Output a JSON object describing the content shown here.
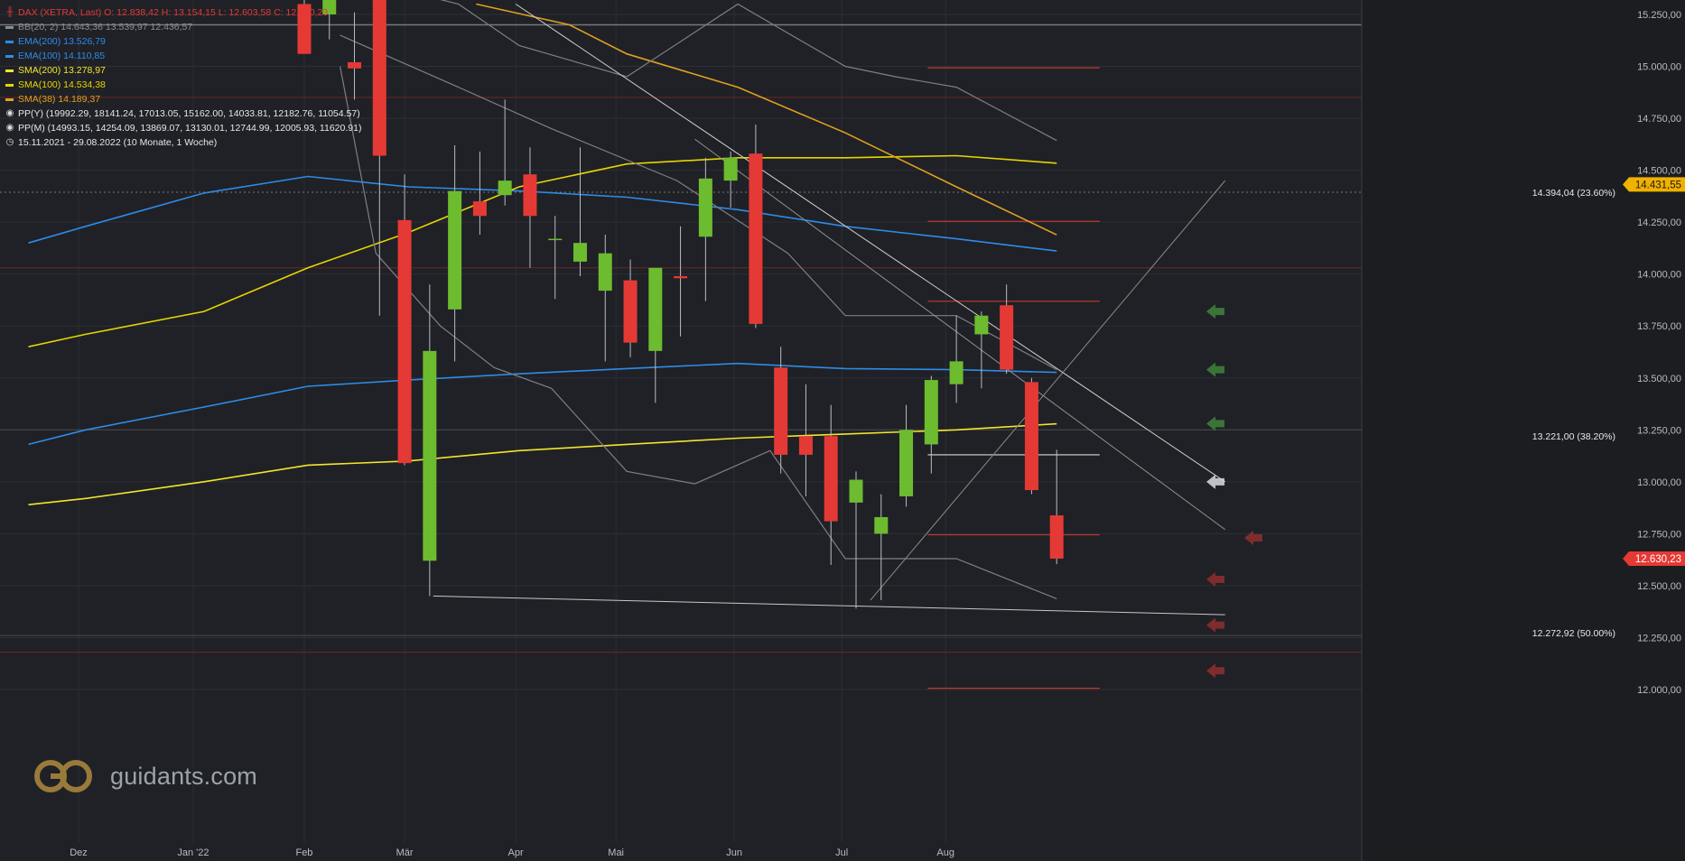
{
  "header": {
    "title_line": "DAX (XETRA, Last)  O: 12.838,42  H: 13.154,15  L: 12.603,58  C: 12.630,23",
    "title_icon": "candlestick-icon",
    "indicators": [
      {
        "label": "BB(20, 2)  14.643,36  13.539,97  12.436,57",
        "color": "#8a8d93"
      },
      {
        "label": "EMA(200)  13.526,79",
        "color": "#2f8be8"
      },
      {
        "label": "EMA(100)  14.110,85",
        "color": "#2f8be8"
      },
      {
        "label": "SMA(200)  13.278,97",
        "color": "#f2e62a"
      },
      {
        "label": "SMA(100)  14.534,38",
        "color": "#e8d400"
      },
      {
        "label": "SMA(38)  14.189,37",
        "color": "#e0a020"
      }
    ],
    "pivots": [
      {
        "label": "PP(Y)  (19992.29, 18141.24, 17013.05, 15162.00, 14033.81, 12182.76, 11054.57)",
        "icon": "target-icon"
      },
      {
        "label": "PP(M)  (14993.15, 14254.09, 13869.07, 13130.01, 12744.99, 12005.93, 11620.91)",
        "icon": "target-icon"
      }
    ],
    "period": {
      "label": "15.11.2021 - 29.08.2022   (10 Monate, 1 Woche)",
      "icon": "clock-icon"
    }
  },
  "brand": {
    "text": "guidants.com",
    "icon": "guidants-logo-icon"
  },
  "colors": {
    "background": "#1f2126",
    "up": "#6dbb2f",
    "down": "#e53935",
    "ema": "#2f8be8",
    "sma200": "#f2e62a",
    "sma100": "#e8d400",
    "sma38": "#e0a020",
    "bb": "#7c7f85",
    "last_badge": "#e53935",
    "fib_badge": "#f0b100"
  },
  "chart_data": {
    "type": "candlestick",
    "interval": "weekly",
    "yaxis_ticks": [
      "15.250,00",
      "15.000,00",
      "14.750,00",
      "14.500,00",
      "14.250,00",
      "14.000,00",
      "13.750,00",
      "13.500,00",
      "13.250,00",
      "13.000,00",
      "12.750,00",
      "12.500,00",
      "12.250,00",
      "12.000,00"
    ],
    "xaxis_ticks": [
      "Dez",
      "Jan '22",
      "Feb",
      "Mär",
      "Apr",
      "Mai",
      "Jun",
      "Jul",
      "Aug"
    ],
    "last_price": {
      "label": "12.630,23",
      "value": 12630.23
    },
    "fib_badge": {
      "label": "14.431,55",
      "value": 14431.55
    },
    "fib_labels": [
      {
        "label": "14.394,04 (23.60%)",
        "value": 14394.04
      },
      {
        "label": "13.221,00 (38.20%)",
        "value": 13221.0
      },
      {
        "label": "12.272,92 (50.00%)",
        "value": 12272.92
      }
    ],
    "candles": [
      {
        "d": "2022-01-31",
        "o": 15300,
        "h": 15400,
        "l": 15060,
        "c": 15060
      },
      {
        "d": "2022-02-07",
        "o": 15250,
        "h": 15400,
        "l": 15130,
        "c": 15320
      },
      {
        "d": "2022-02-14",
        "o": 15020,
        "h": 15260,
        "l": 14840,
        "c": 14990
      },
      {
        "d": "2022-02-21",
        "o": 15590,
        "h": 15750,
        "l": 13800,
        "c": 14570
      },
      {
        "d": "2022-02-28",
        "o": 14260,
        "h": 14480,
        "l": 13080,
        "c": 13090
      },
      {
        "d": "2022-03-07",
        "o": 12620,
        "h": 13950,
        "l": 12450,
        "c": 13630
      },
      {
        "d": "2022-03-14",
        "o": 13830,
        "h": 14620,
        "l": 13580,
        "c": 14400
      },
      {
        "d": "2022-03-21",
        "o": 14350,
        "h": 14590,
        "l": 14190,
        "c": 14280
      },
      {
        "d": "2022-03-28",
        "o": 14380,
        "h": 14840,
        "l": 14330,
        "c": 14450
      },
      {
        "d": "2022-04-04",
        "o": 14480,
        "h": 14610,
        "l": 14030,
        "c": 14280
      },
      {
        "d": "2022-04-11",
        "o": 14170,
        "h": 14280,
        "l": 13880,
        "c": 14170
      },
      {
        "d": "2022-04-18",
        "o": 14060,
        "h": 14610,
        "l": 13990,
        "c": 14150
      },
      {
        "d": "2022-04-25",
        "o": 13920,
        "h": 14190,
        "l": 13580,
        "c": 14100
      },
      {
        "d": "2022-05-02",
        "o": 13970,
        "h": 14070,
        "l": 13600,
        "c": 13670
      },
      {
        "d": "2022-05-09",
        "o": 13630,
        "h": 14000,
        "l": 13380,
        "c": 14030
      },
      {
        "d": "2022-05-16",
        "o": 13990,
        "h": 14230,
        "l": 13700,
        "c": 13980
      },
      {
        "d": "2022-05-23",
        "o": 14180,
        "h": 14560,
        "l": 13870,
        "c": 14460
      },
      {
        "d": "2022-05-30",
        "o": 14450,
        "h": 14590,
        "l": 14320,
        "c": 14560
      },
      {
        "d": "2022-06-06",
        "o": 14580,
        "h": 14720,
        "l": 13740,
        "c": 13760
      },
      {
        "d": "2022-06-13",
        "o": 13550,
        "h": 13650,
        "l": 13040,
        "c": 13130
      },
      {
        "d": "2022-06-20",
        "o": 13220,
        "h": 13470,
        "l": 12930,
        "c": 13130
      },
      {
        "d": "2022-06-27",
        "o": 13220,
        "h": 13370,
        "l": 12600,
        "c": 12810
      },
      {
        "d": "2022-07-04",
        "o": 12900,
        "h": 13050,
        "l": 12390,
        "c": 13010
      },
      {
        "d": "2022-07-11",
        "o": 12750,
        "h": 12940,
        "l": 12430,
        "c": 12830
      },
      {
        "d": "2022-07-18",
        "o": 12930,
        "h": 13370,
        "l": 12880,
        "c": 13250
      },
      {
        "d": "2022-07-25",
        "o": 13180,
        "h": 13510,
        "l": 13040,
        "c": 13490
      },
      {
        "d": "2022-08-01",
        "o": 13470,
        "h": 13800,
        "l": 13380,
        "c": 13580
      },
      {
        "d": "2022-08-08",
        "o": 13710,
        "h": 13820,
        "l": 13450,
        "c": 13800
      },
      {
        "d": "2022-08-15",
        "o": 13850,
        "h": 13950,
        "l": 13520,
        "c": 13540
      },
      {
        "d": "2022-08-22",
        "o": 13480,
        "h": 13500,
        "l": 12940,
        "c": 12960
      },
      {
        "d": "2022-08-29",
        "o": 12838.42,
        "h": 13154.15,
        "l": 12603.58,
        "c": 12630.23
      }
    ],
    "series": [
      {
        "name": "EMA(200)",
        "color": "#2f8be8",
        "points": [
          [
            "2021-11-15",
            13180
          ],
          [
            "2021-12-01",
            13250
          ],
          [
            "2022-01-03",
            13360
          ],
          [
            "2022-02-01",
            13460
          ],
          [
            "2022-03-01",
            13490
          ],
          [
            "2022-04-01",
            13520
          ],
          [
            "2022-05-01",
            13545
          ],
          [
            "2022-06-01",
            13570
          ],
          [
            "2022-07-01",
            13545
          ],
          [
            "2022-08-01",
            13540
          ],
          [
            "2022-08-29",
            13527
          ]
        ]
      },
      {
        "name": "EMA(100)",
        "color": "#2f8be8",
        "points": [
          [
            "2021-11-15",
            14150
          ],
          [
            "2021-12-01",
            14230
          ],
          [
            "2022-01-03",
            14390
          ],
          [
            "2022-02-01",
            14470
          ],
          [
            "2022-03-01",
            14420
          ],
          [
            "2022-04-01",
            14400
          ],
          [
            "2022-05-01",
            14370
          ],
          [
            "2022-06-01",
            14310
          ],
          [
            "2022-07-01",
            14230
          ],
          [
            "2022-08-01",
            14170
          ],
          [
            "2022-08-29",
            14111
          ]
        ]
      },
      {
        "name": "SMA(200)",
        "color": "#f2e62a",
        "points": [
          [
            "2021-11-15",
            12890
          ],
          [
            "2021-12-01",
            12920
          ],
          [
            "2022-01-03",
            13000
          ],
          [
            "2022-02-01",
            13080
          ],
          [
            "2022-03-01",
            13100
          ],
          [
            "2022-04-01",
            13150
          ],
          [
            "2022-05-01",
            13180
          ],
          [
            "2022-06-01",
            13210
          ],
          [
            "2022-07-01",
            13230
          ],
          [
            "2022-08-01",
            13250
          ],
          [
            "2022-08-29",
            13279
          ]
        ]
      },
      {
        "name": "SMA(100)",
        "color": "#e8d400",
        "points": [
          [
            "2021-11-15",
            13650
          ],
          [
            "2021-12-01",
            13710
          ],
          [
            "2022-01-03",
            13820
          ],
          [
            "2022-02-01",
            14030
          ],
          [
            "2022-03-01",
            14200
          ],
          [
            "2022-04-01",
            14420
          ],
          [
            "2022-05-01",
            14530
          ],
          [
            "2022-06-01",
            14560
          ],
          [
            "2022-07-01",
            14560
          ],
          [
            "2022-08-01",
            14570
          ],
          [
            "2022-08-29",
            14534
          ]
        ]
      },
      {
        "name": "SMA(38)",
        "color": "#e0a020",
        "points": [
          [
            "2022-03-20",
            15300
          ],
          [
            "2022-04-15",
            15200
          ],
          [
            "2022-05-01",
            15060
          ],
          [
            "2022-06-01",
            14900
          ],
          [
            "2022-07-01",
            14680
          ],
          [
            "2022-08-01",
            14420
          ],
          [
            "2022-08-29",
            14189
          ]
        ]
      },
      {
        "name": "BB upper",
        "color": "#7c7f85",
        "points": [
          [
            "2022-02-20",
            15400
          ],
          [
            "2022-03-15",
            15300
          ],
          [
            "2022-04-01",
            15100
          ],
          [
            "2022-05-01",
            14950
          ],
          [
            "2022-06-01",
            15300
          ],
          [
            "2022-07-01",
            15000
          ],
          [
            "2022-07-15",
            14950
          ],
          [
            "2022-08-01",
            14900
          ],
          [
            "2022-08-29",
            14643
          ]
        ]
      },
      {
        "name": "BB middle",
        "color": "#7c7f85",
        "points": [
          [
            "2022-02-10",
            15150
          ],
          [
            "2022-03-15",
            14900
          ],
          [
            "2022-04-10",
            14700
          ],
          [
            "2022-05-15",
            14450
          ],
          [
            "2022-06-15",
            14100
          ],
          [
            "2022-07-01",
            13800
          ],
          [
            "2022-08-01",
            13800
          ],
          [
            "2022-08-29",
            13540
          ]
        ]
      },
      {
        "name": "BB lower",
        "color": "#7c7f85",
        "points": [
          [
            "2022-02-10",
            15000
          ],
          [
            "2022-02-20",
            14100
          ],
          [
            "2022-03-10",
            13750
          ],
          [
            "2022-03-25",
            13550
          ],
          [
            "2022-04-10",
            13450
          ],
          [
            "2022-05-01",
            13050
          ],
          [
            "2022-05-20",
            12990
          ],
          [
            "2022-06-10",
            13150
          ],
          [
            "2022-07-01",
            12630
          ],
          [
            "2022-08-01",
            12630
          ],
          [
            "2022-08-29",
            12437
          ]
        ]
      }
    ],
    "trendlines": [
      {
        "from": [
          "2022-03-31",
          15300
        ],
        "to": [
          "2022-10-15",
          13000
        ],
        "color": "#d0d0d0"
      },
      {
        "from": [
          "2022-03-08",
          12450
        ],
        "to": [
          "2022-10-15",
          12360
        ],
        "color": "#c8c8c8"
      },
      {
        "from": [
          "2022-05-20",
          14650
        ],
        "to": [
          "2022-10-15",
          12770
        ],
        "color": "#909090"
      },
      {
        "from": [
          "2022-07-08",
          12430
        ],
        "to": [
          "2022-10-15",
          14450
        ],
        "color": "#8a8a8a"
      }
    ],
    "pivot_levels": [
      {
        "value": 14993.15,
        "color": "#c0392b"
      },
      {
        "value": 14254.09,
        "color": "#c0392b"
      },
      {
        "value": 13869.07,
        "color": "#c0392b"
      },
      {
        "value": 13130.01,
        "color": "#d8d8d8"
      },
      {
        "value": 12744.99,
        "color": "#c0392b"
      },
      {
        "value": 12005.93,
        "color": "#c0392b"
      }
    ],
    "signals": [
      {
        "value": 13820,
        "dir": "buy"
      },
      {
        "value": 13540,
        "dir": "buy"
      },
      {
        "value": 13280,
        "dir": "buy"
      },
      {
        "value": 13000,
        "dir": "neutral"
      },
      {
        "value": 12730,
        "dir": "sell"
      },
      {
        "value": 12530,
        "dir": "sell"
      },
      {
        "value": 12310,
        "dir": "sell"
      },
      {
        "value": 12090,
        "dir": "sell"
      }
    ]
  }
}
